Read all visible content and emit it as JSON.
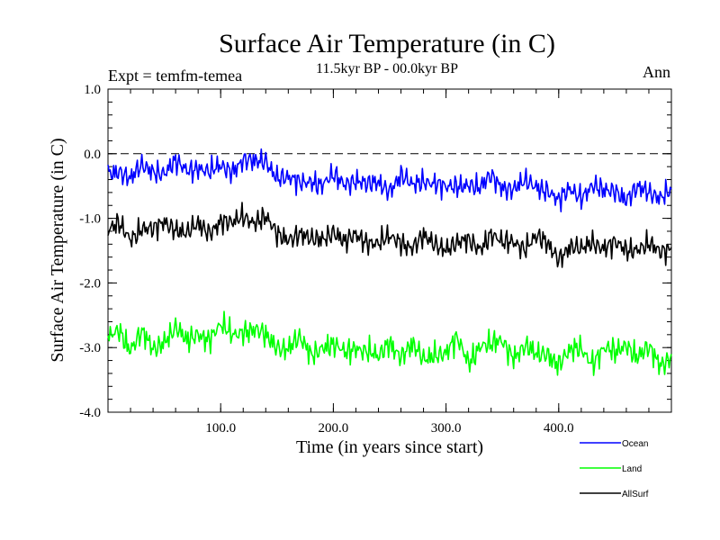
{
  "chart_data": {
    "type": "line",
    "title": "Surface Air Temperature (in C)",
    "subtitle": "11.5kyr BP - 00.0kyr BP",
    "experiment_label": "Expt = temfm-temea",
    "season_label": "Ann",
    "xlabel": "Time (in years since start)",
    "ylabel": "Surface Air Temperature (in C)",
    "xlim": [
      0,
      500
    ],
    "ylim": [
      -4.0,
      1.0
    ],
    "xticks": [
      100,
      200,
      300,
      400
    ],
    "xtick_labels": [
      "100.0",
      "200.0",
      "300.0",
      "400.0"
    ],
    "yticks": [
      1.0,
      0.0,
      -1.0,
      -2.0,
      -3.0,
      -4.0
    ],
    "ytick_labels": [
      "1.0",
      "0.0",
      "-1.0",
      "-2.0",
      "-3.0",
      "-4.0"
    ],
    "reference_line": 0.0,
    "series": [
      {
        "name": "Ocean",
        "color": "#0000ff",
        "x": [
          0,
          10,
          20,
          30,
          40,
          50,
          60,
          70,
          80,
          90,
          100,
          110,
          120,
          130,
          140,
          150,
          160,
          170,
          180,
          190,
          200,
          210,
          220,
          230,
          240,
          250,
          260,
          270,
          280,
          290,
          300,
          310,
          320,
          330,
          340,
          350,
          360,
          370,
          380,
          390,
          400,
          410,
          420,
          430,
          440,
          450,
          460,
          470,
          480,
          490,
          500
        ],
        "values": [
          -0.3,
          -0.25,
          -0.4,
          -0.2,
          -0.25,
          -0.3,
          -0.15,
          -0.25,
          -0.2,
          -0.3,
          -0.2,
          -0.25,
          -0.1,
          -0.15,
          -0.1,
          -0.35,
          -0.4,
          -0.45,
          -0.4,
          -0.5,
          -0.35,
          -0.45,
          -0.4,
          -0.5,
          -0.45,
          -0.55,
          -0.35,
          -0.5,
          -0.4,
          -0.45,
          -0.55,
          -0.5,
          -0.45,
          -0.55,
          -0.35,
          -0.5,
          -0.55,
          -0.45,
          -0.5,
          -0.55,
          -0.75,
          -0.55,
          -0.65,
          -0.5,
          -0.6,
          -0.55,
          -0.7,
          -0.55,
          -0.6,
          -0.65,
          -0.55
        ]
      },
      {
        "name": "Land",
        "color": "#00ff00",
        "x": [
          0,
          10,
          20,
          30,
          40,
          50,
          60,
          70,
          80,
          90,
          100,
          110,
          120,
          130,
          140,
          150,
          160,
          170,
          180,
          190,
          200,
          210,
          220,
          230,
          240,
          250,
          260,
          270,
          280,
          290,
          300,
          310,
          320,
          330,
          340,
          350,
          360,
          370,
          380,
          390,
          400,
          410,
          420,
          430,
          440,
          450,
          460,
          470,
          480,
          490,
          500
        ],
        "values": [
          -2.9,
          -2.7,
          -3.0,
          -2.8,
          -3.05,
          -2.85,
          -2.7,
          -2.95,
          -2.75,
          -2.85,
          -2.7,
          -2.8,
          -2.7,
          -2.75,
          -2.85,
          -2.95,
          -3.0,
          -2.9,
          -3.1,
          -2.95,
          -3.0,
          -3.1,
          -2.95,
          -3.05,
          -3.2,
          -2.9,
          -3.1,
          -3.0,
          -3.2,
          -3.05,
          -3.1,
          -2.9,
          -3.2,
          -2.95,
          -3.0,
          -2.9,
          -3.1,
          -3.0,
          -3.15,
          -3.05,
          -3.25,
          -3.1,
          -3.0,
          -3.2,
          -3.05,
          -3.1,
          -2.9,
          -3.15,
          -3.05,
          -3.25,
          -3.1
        ]
      },
      {
        "name": "AllSurf",
        "color": "#000000",
        "x": [
          0,
          10,
          20,
          30,
          40,
          50,
          60,
          70,
          80,
          90,
          100,
          110,
          120,
          130,
          140,
          150,
          160,
          170,
          180,
          190,
          200,
          210,
          220,
          230,
          240,
          250,
          260,
          270,
          280,
          290,
          300,
          310,
          320,
          330,
          340,
          350,
          360,
          370,
          380,
          390,
          400,
          410,
          420,
          430,
          440,
          450,
          460,
          470,
          480,
          490,
          500
        ],
        "values": [
          -1.2,
          -1.1,
          -1.3,
          -1.15,
          -1.2,
          -1.05,
          -1.15,
          -1.25,
          -1.1,
          -1.2,
          -1.05,
          -1.1,
          -0.95,
          -1.05,
          -1.0,
          -1.25,
          -1.3,
          -1.25,
          -1.35,
          -1.3,
          -1.2,
          -1.4,
          -1.25,
          -1.35,
          -1.4,
          -1.3,
          -1.35,
          -1.45,
          -1.3,
          -1.4,
          -1.45,
          -1.4,
          -1.35,
          -1.45,
          -1.25,
          -1.4,
          -1.35,
          -1.45,
          -1.3,
          -1.4,
          -1.6,
          -1.45,
          -1.5,
          -1.35,
          -1.45,
          -1.4,
          -1.5,
          -1.45,
          -1.4,
          -1.55,
          -1.45
        ]
      }
    ]
  }
}
